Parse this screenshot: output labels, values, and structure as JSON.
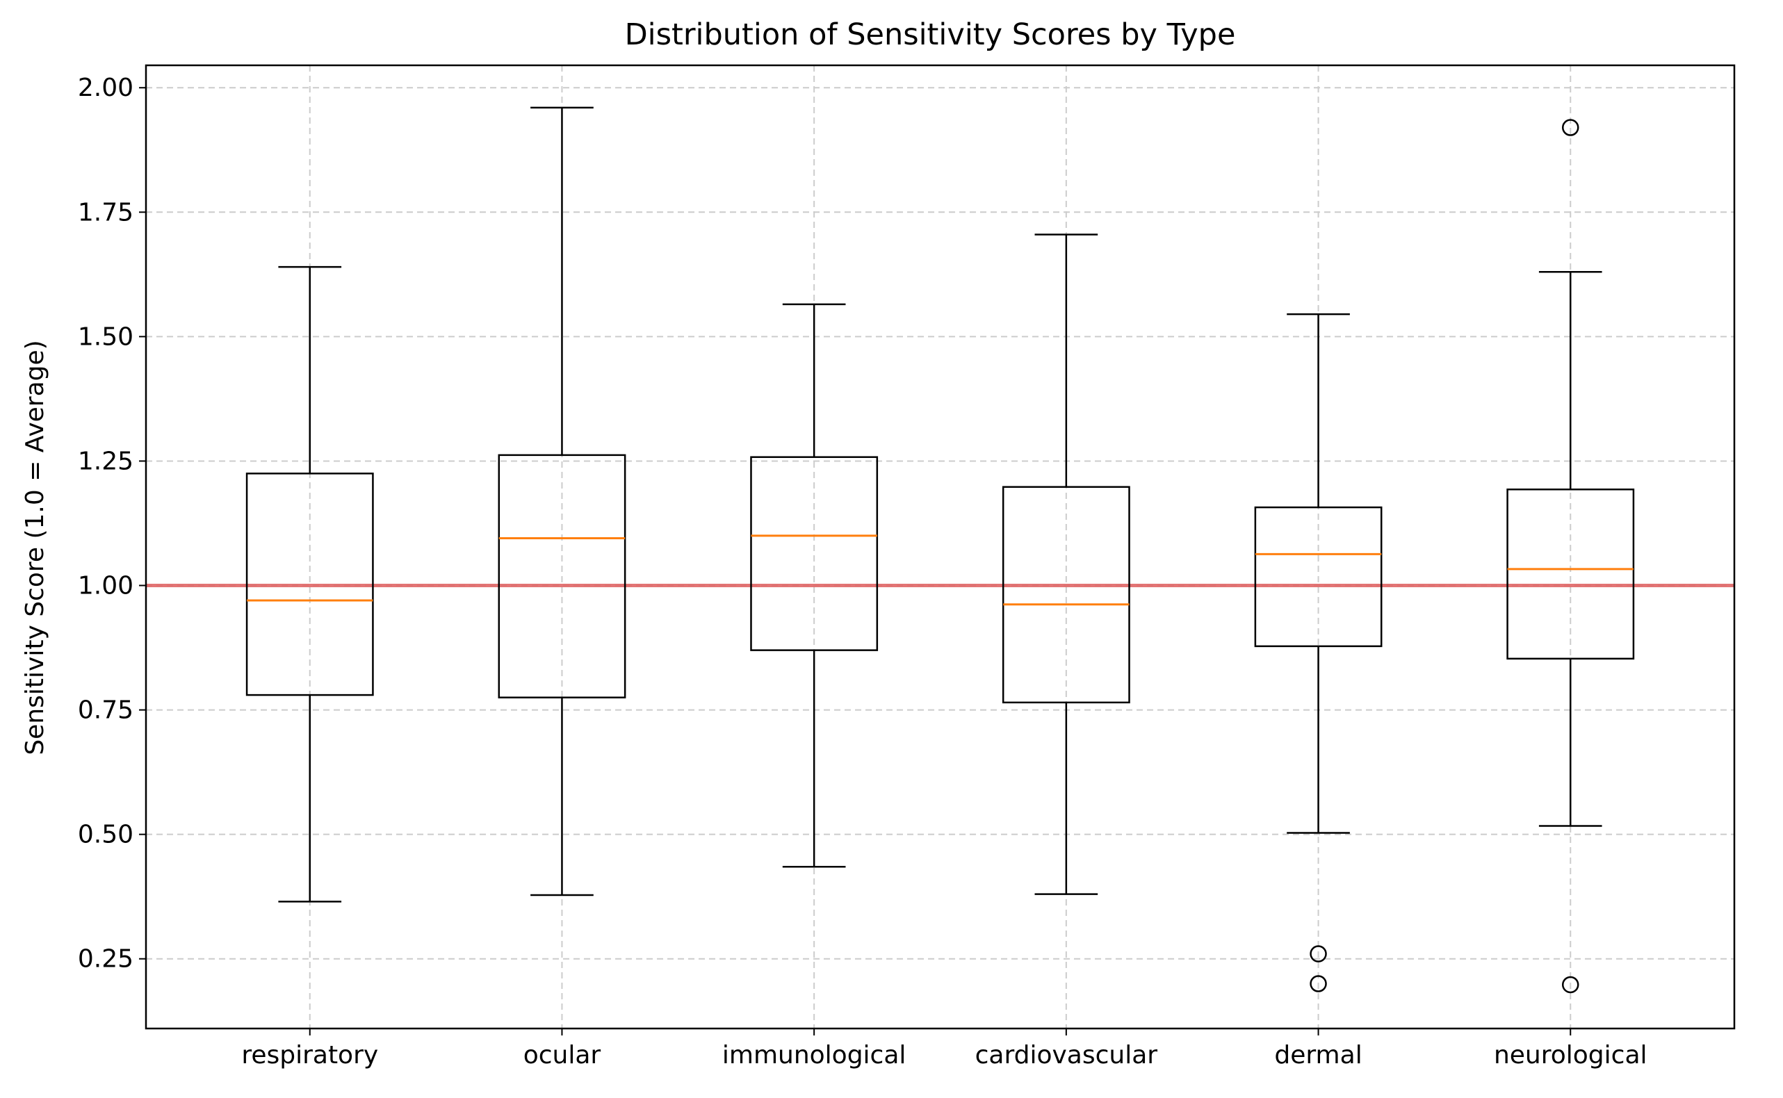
{
  "chart_data": {
    "type": "box",
    "title": "Distribution of Sensitivity Scores by Type",
    "xlabel": "",
    "ylabel": "Sensitivity Score (1.0 = Average)",
    "ylim": [
      0.11,
      2.045
    ],
    "yticks": [
      0.25,
      0.5,
      0.75,
      1.0,
      1.25,
      1.5,
      1.75,
      2.0
    ],
    "ytick_labels": [
      "0.25",
      "0.50",
      "0.75",
      "1.00",
      "1.25",
      "1.50",
      "1.75",
      "2.00"
    ],
    "grid": true,
    "reference_line": {
      "y": 1.0,
      "color": "#e06666"
    },
    "colors": {
      "box": "#000000",
      "median": "#ff7f0e",
      "grid": "#cccccc"
    },
    "categories": [
      "respiratory",
      "ocular",
      "immunological",
      "cardiovascular",
      "dermal",
      "neurological"
    ],
    "boxes": [
      {
        "category": "respiratory",
        "whisker_low": 0.365,
        "q1": 0.78,
        "median": 0.97,
        "q3": 1.225,
        "whisker_high": 1.64,
        "outliers": []
      },
      {
        "category": "ocular",
        "whisker_low": 0.378,
        "q1": 0.775,
        "median": 1.095,
        "q3": 1.262,
        "whisker_high": 1.96,
        "outliers": []
      },
      {
        "category": "immunological",
        "whisker_low": 0.435,
        "q1": 0.87,
        "median": 1.1,
        "q3": 1.258,
        "whisker_high": 1.565,
        "outliers": []
      },
      {
        "category": "cardiovascular",
        "whisker_low": 0.38,
        "q1": 0.765,
        "median": 0.962,
        "q3": 1.198,
        "whisker_high": 1.705,
        "outliers": []
      },
      {
        "category": "dermal",
        "whisker_low": 0.503,
        "q1": 0.878,
        "median": 1.063,
        "q3": 1.157,
        "whisker_high": 1.545,
        "outliers": [
          0.26,
          0.2
        ]
      },
      {
        "category": "neurological",
        "whisker_low": 0.517,
        "q1": 0.853,
        "median": 1.033,
        "q3": 1.193,
        "whisker_high": 1.63,
        "outliers": [
          1.92,
          0.198
        ]
      }
    ]
  }
}
